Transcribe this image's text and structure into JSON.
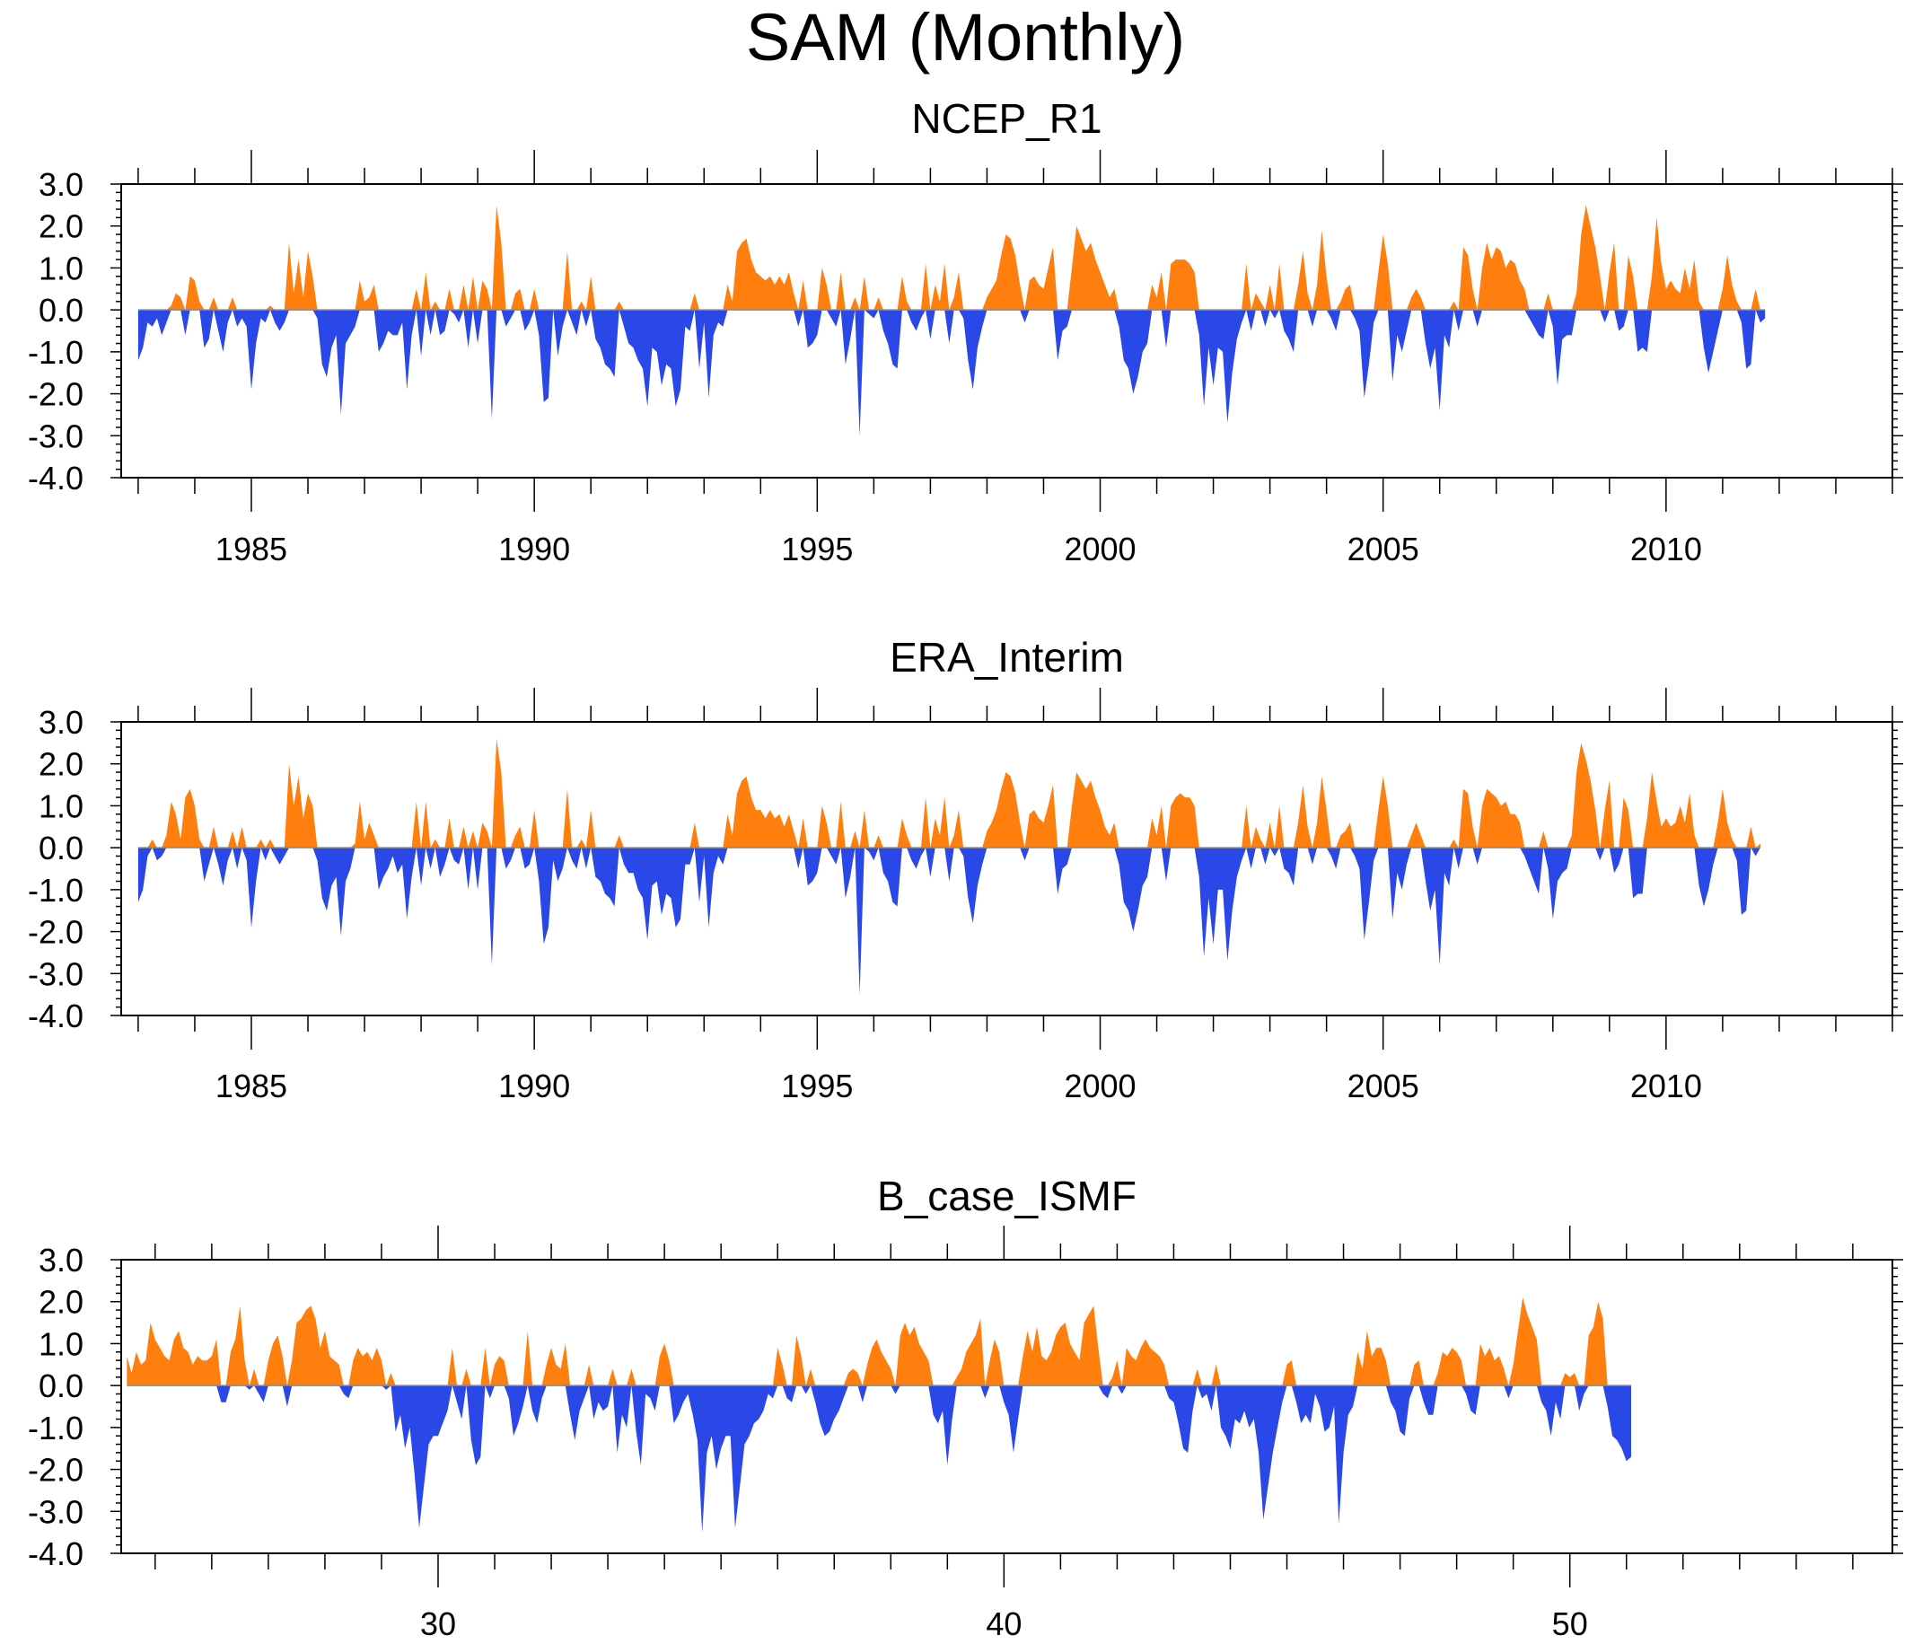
{
  "figure_title": "SAM (Monthly)",
  "colors": {
    "positive": "#ff7f0e",
    "negative": "#2a47e8",
    "axis": "#000000"
  },
  "chart_data": [
    {
      "type": "area",
      "title": "NCEP_R1",
      "xlabel": "",
      "ylabel": "",
      "xlim": [
        1982.7,
        2014.0
      ],
      "ylim": [
        -4.0,
        3.0
      ],
      "x_start": 1983.0,
      "x_step": 0.0833333,
      "x_tick_labels": [
        "1985",
        "1990",
        "1995",
        "2000",
        "2005",
        "2010"
      ],
      "x_tick_values": [
        1985,
        1990,
        1995,
        2000,
        2005,
        2010
      ],
      "y_tick_labels": [
        "3.0",
        "2.0",
        "1.0",
        "0.0",
        "-1.0",
        "-2.0",
        "-3.0",
        "-4.0"
      ],
      "y_tick_values": [
        3,
        2,
        1,
        0,
        -1,
        -2,
        -3,
        -4
      ],
      "values": [
        -1.2,
        -0.9,
        -0.3,
        -0.4,
        -0.2,
        -0.6,
        -0.3,
        0.1,
        0.4,
        0.3,
        -0.6,
        0.8,
        0.7,
        0.2,
        -0.9,
        -0.7,
        0.3,
        -0.5,
        -1.0,
        -0.3,
        0.3,
        -0.4,
        -0.2,
        -0.4,
        -1.9,
        -0.8,
        -0.2,
        -0.3,
        0.1,
        -0.3,
        -0.5,
        -0.3,
        1.6,
        0.4,
        1.2,
        0.3,
        1.4,
        0.8,
        -0.2,
        -1.3,
        -1.6,
        -0.9,
        -0.6,
        -2.5,
        -0.8,
        -0.6,
        -0.4,
        0.7,
        0.2,
        0.3,
        0.6,
        -1.0,
        -0.8,
        -0.5,
        -0.6,
        -0.6,
        -0.3,
        -1.9,
        -0.6,
        0.5,
        -1.1,
        0.9,
        -0.6,
        0.2,
        -0.6,
        -0.5,
        0.5,
        -0.1,
        -0.3,
        0.6,
        -0.9,
        0.8,
        -0.8,
        0.7,
        0.5,
        -2.6,
        2.5,
        1.6,
        -0.4,
        -0.2,
        0.4,
        0.5,
        -0.5,
        -0.3,
        0.5,
        -0.6,
        -2.2,
        -2.1,
        0.0,
        -1.1,
        -0.4,
        1.4,
        -0.3,
        -0.6,
        0.2,
        -0.4,
        0.8,
        -0.7,
        -0.9,
        -1.3,
        -1.4,
        -1.6,
        0.2,
        -0.4,
        -0.8,
        -0.9,
        -1.2,
        -1.4,
        -2.3,
        -0.9,
        -1.0,
        -1.8,
        -1.3,
        -1.4,
        -2.3,
        -1.9,
        -0.4,
        -0.5,
        0.4,
        -1.4,
        -0.3,
        -2.1,
        -0.6,
        -0.3,
        -0.4,
        0.6,
        0.2,
        1.4,
        1.6,
        1.7,
        1.2,
        0.9,
        0.8,
        0.7,
        0.8,
        0.6,
        0.8,
        0.6,
        0.9,
        0.4,
        -0.4,
        0.7,
        -0.9,
        -0.8,
        -0.6,
        1.0,
        0.6,
        -0.2,
        -0.4,
        0.9,
        -1.3,
        -0.7,
        0.3,
        -3.0,
        0.8,
        -0.1,
        -0.2,
        0.3,
        -0.5,
        -0.8,
        -1.3,
        -1.4,
        0.8,
        0.2,
        -0.3,
        -0.5,
        -0.2,
        1.1,
        -0.7,
        0.6,
        0.2,
        1.1,
        -0.8,
        0.3,
        0.9,
        -0.2,
        -1.2,
        -1.9,
        -0.9,
        -0.4,
        0.3,
        0.5,
        0.7,
        1.3,
        1.8,
        1.7,
        1.3,
        0.6,
        -0.3,
        0.7,
        0.8,
        0.6,
        0.5,
        1.0,
        1.5,
        -1.2,
        -0.5,
        -0.4,
        1.0,
        2.0,
        1.7,
        1.4,
        1.6,
        1.2,
        0.9,
        0.6,
        0.3,
        0.5,
        -0.4,
        -1.2,
        -1.4,
        -2.0,
        -1.6,
        -1.0,
        -0.8,
        0.6,
        0.3,
        0.9,
        -0.9,
        1.1,
        1.2,
        1.2,
        1.2,
        1.1,
        0.9,
        -0.6,
        -2.3,
        -0.9,
        -1.8,
        -0.9,
        -1.0,
        -2.7,
        -1.5,
        -0.7,
        -0.3,
        1.1,
        -0.5,
        0.4,
        0.2,
        -0.4,
        0.6,
        -0.2,
        1.1,
        -0.5,
        -0.7,
        -1.0,
        0.6,
        1.4,
        0.4,
        -0.4,
        0.6,
        1.9,
        0.8,
        -0.2,
        -0.5,
        0.2,
        0.5,
        0.6,
        -0.2,
        -0.5,
        -2.1,
        -1.3,
        -0.3,
        0.9,
        1.8,
        1.1,
        -1.7,
        -0.6,
        -1.0,
        -0.5,
        0.3,
        0.5,
        0.3,
        -0.8,
        -1.4,
        -0.9,
        -2.4,
        -0.6,
        -0.9,
        0.2,
        -0.5,
        1.5,
        1.3,
        0.5,
        -0.4,
        1.0,
        1.6,
        1.2,
        1.5,
        1.4,
        1.0,
        1.2,
        1.1,
        0.7,
        0.5,
        -0.2,
        -0.4,
        -0.6,
        -0.7,
        0.4,
        -0.4,
        -1.8,
        -0.7,
        -0.6,
        -0.6,
        0.4,
        1.8,
        2.5,
        2.0,
        1.5,
        0.8,
        -0.3,
        0.9,
        1.6,
        -0.5,
        -0.4,
        1.3,
        0.8,
        -1.0,
        -0.9,
        -1.0,
        0.8,
        2.2,
        1.1,
        0.5,
        0.7,
        0.5,
        0.4,
        1.0,
        0.5,
        1.2,
        0.2,
        -0.9,
        -1.5,
        -1.0,
        -0.5,
        0.5,
        1.3,
        0.6,
        0.2,
        -0.3,
        -1.4,
        -1.3,
        0.5,
        -0.3,
        -0.2
      ]
    },
    {
      "type": "area",
      "title": "ERA_Interim",
      "xlabel": "",
      "ylabel": "",
      "xlim": [
        1982.7,
        2014.0
      ],
      "ylim": [
        -4.0,
        3.0
      ],
      "x_start": 1983.0,
      "x_step": 0.0833333,
      "x_tick_labels": [
        "1985",
        "1990",
        "1995",
        "2000",
        "2005",
        "2010"
      ],
      "x_tick_values": [
        1985,
        1990,
        1995,
        2000,
        2005,
        2010
      ],
      "y_tick_labels": [
        "3.0",
        "2.0",
        "1.0",
        "0.0",
        "-1.0",
        "-2.0",
        "-3.0",
        "-4.0"
      ],
      "y_tick_values": [
        3,
        2,
        1,
        0,
        -1,
        -2,
        -3,
        -4
      ],
      "values": [
        -1.3,
        -1.0,
        -0.2,
        0.2,
        -0.3,
        -0.2,
        0.3,
        1.1,
        0.8,
        0.2,
        1.2,
        1.4,
        1.0,
        0.2,
        -0.8,
        -0.4,
        0.5,
        -0.4,
        -0.9,
        -0.3,
        0.4,
        -0.5,
        0.5,
        -0.3,
        -1.9,
        -0.8,
        0.2,
        -0.3,
        0.2,
        -0.2,
        -0.4,
        -0.2,
        2.0,
        1.0,
        1.7,
        0.7,
        1.3,
        1.0,
        -0.3,
        -1.2,
        -1.5,
        -0.9,
        -0.7,
        -2.1,
        -0.8,
        -0.5,
        0.1,
        1.1,
        0.2,
        0.6,
        0.3,
        -1.0,
        -0.7,
        -0.5,
        -0.2,
        -0.6,
        -0.4,
        -1.7,
        -0.7,
        1.1,
        -0.9,
        1.1,
        -0.5,
        0.2,
        -0.7,
        -0.4,
        0.7,
        -0.3,
        -0.4,
        0.5,
        -1.0,
        0.4,
        -1.0,
        0.6,
        0.4,
        -2.8,
        2.6,
        1.8,
        -0.5,
        -0.3,
        0.3,
        0.5,
        -0.5,
        -0.4,
        0.9,
        -0.8,
        -2.3,
        -1.9,
        -0.3,
        -0.8,
        -0.5,
        1.4,
        -0.3,
        -0.5,
        0.2,
        -0.5,
        0.9,
        -0.7,
        -0.8,
        -1.1,
        -1.2,
        -1.4,
        0.3,
        -0.4,
        -0.6,
        -0.6,
        -1.0,
        -1.2,
        -2.2,
        -0.9,
        -0.8,
        -1.6,
        -1.1,
        -1.2,
        -1.9,
        -1.7,
        -0.4,
        -0.4,
        0.6,
        -1.3,
        -0.2,
        -1.9,
        -0.6,
        -0.2,
        -0.4,
        0.8,
        0.3,
        1.3,
        1.6,
        1.7,
        1.2,
        0.9,
        0.9,
        0.7,
        0.9,
        0.7,
        0.8,
        0.5,
        0.8,
        0.4,
        -0.5,
        0.7,
        -0.9,
        -0.8,
        -0.6,
        1.0,
        0.6,
        -0.2,
        -0.4,
        1.1,
        -1.2,
        -0.7,
        0.4,
        -3.5,
        0.9,
        -0.1,
        -0.3,
        0.3,
        -0.6,
        -0.8,
        -1.3,
        -1.4,
        0.7,
        0.3,
        -0.3,
        -0.5,
        -0.2,
        1.2,
        -0.7,
        0.7,
        0.3,
        1.2,
        -0.8,
        0.3,
        0.9,
        -0.2,
        -1.2,
        -1.8,
        -0.9,
        -0.4,
        0.4,
        0.6,
        0.9,
        1.4,
        1.8,
        1.7,
        1.3,
        0.6,
        -0.3,
        0.8,
        0.9,
        0.7,
        0.6,
        1.0,
        1.5,
        -1.1,
        -0.5,
        -0.4,
        1.0,
        1.8,
        1.6,
        1.4,
        1.6,
        1.2,
        0.9,
        0.5,
        0.3,
        0.6,
        -0.4,
        -1.3,
        -1.5,
        -2.0,
        -1.5,
        -0.9,
        -0.7,
        0.7,
        0.3,
        1.0,
        -0.8,
        1.0,
        1.2,
        1.3,
        1.2,
        1.2,
        1.0,
        -0.7,
        -2.6,
        -1.2,
        -2.3,
        -1.0,
        -1.0,
        -2.7,
        -1.5,
        -0.7,
        -0.3,
        1.0,
        -0.5,
        0.5,
        0.2,
        -0.4,
        0.6,
        -0.2,
        1.0,
        -0.5,
        -0.6,
        -0.9,
        0.6,
        1.5,
        0.5,
        -0.4,
        0.6,
        1.7,
        0.9,
        -0.2,
        -0.5,
        0.3,
        0.4,
        0.6,
        -0.2,
        -0.5,
        -2.2,
        -1.3,
        -0.3,
        0.9,
        1.7,
        1.0,
        -1.7,
        -0.6,
        -1.0,
        -0.4,
        0.3,
        0.6,
        0.3,
        -0.8,
        -1.5,
        -1.0,
        -2.8,
        -0.6,
        -0.9,
        0.2,
        -0.5,
        1.4,
        1.3,
        0.5,
        -0.4,
        1.0,
        1.4,
        1.3,
        1.2,
        1.0,
        1.1,
        0.8,
        0.8,
        0.6,
        -0.2,
        -0.5,
        -0.8,
        -1.1,
        0.4,
        -0.5,
        -1.7,
        -0.8,
        -0.6,
        -0.5,
        0.3,
        1.8,
        2.5,
        2.1,
        1.6,
        0.9,
        -0.3,
        0.9,
        1.6,
        -0.6,
        -0.4,
        1.2,
        0.9,
        -1.2,
        -1.1,
        -1.1,
        0.7,
        1.8,
        1.1,
        0.5,
        0.7,
        0.5,
        0.6,
        1.0,
        0.6,
        1.3,
        0.3,
        -0.9,
        -1.4,
        -1.0,
        -0.4,
        0.6,
        1.4,
        0.6,
        0.2,
        -0.3,
        -1.6,
        -1.5,
        0.5,
        -0.2,
        0.1
      ]
    },
    {
      "type": "area",
      "title": "B_case_ISMF",
      "xlabel": "",
      "ylabel": "",
      "xlim": [
        24.4,
        55.7
      ],
      "ylim": [
        -4.0,
        3.0
      ],
      "x_start": 24.5,
      "x_step": 0.0833333,
      "x_tick_labels": [
        "30",
        "40",
        "50"
      ],
      "x_tick_values": [
        30,
        40,
        50
      ],
      "y_tick_labels": [
        "3.0",
        "2.0",
        "1.0",
        "0.0",
        "-1.0",
        "-2.0",
        "-3.0",
        "-4.0"
      ],
      "y_tick_values": [
        3,
        2,
        1,
        0,
        -1,
        -2,
        -3,
        -4
      ],
      "values": [
        0.7,
        0.3,
        0.8,
        0.5,
        0.6,
        1.5,
        1.1,
        0.9,
        0.7,
        0.6,
        1.1,
        1.3,
        0.9,
        0.8,
        0.5,
        0.7,
        0.6,
        0.6,
        0.7,
        1.1,
        -0.4,
        -0.4,
        0.8,
        1.1,
        1.9,
        0.6,
        -0.1,
        0.4,
        -0.2,
        -0.4,
        0.6,
        1.0,
        1.2,
        0.7,
        -0.5,
        0.6,
        1.5,
        1.6,
        1.8,
        1.9,
        1.6,
        0.9,
        1.3,
        0.7,
        0.6,
        0.5,
        -0.2,
        -0.3,
        0.6,
        0.9,
        0.7,
        0.8,
        0.6,
        0.9,
        0.6,
        -0.1,
        0.3,
        -1.1,
        -0.7,
        -1.5,
        -1.0,
        -2.1,
        -3.4,
        -2.4,
        -1.4,
        -1.2,
        -1.2,
        -0.9,
        -0.6,
        0.9,
        -0.4,
        -0.8,
        0.4,
        -1.3,
        -1.9,
        -1.7,
        0.9,
        -0.3,
        0.5,
        0.7,
        0.6,
        -0.3,
        -1.2,
        -0.9,
        -0.5,
        1.3,
        -0.6,
        -0.9,
        -0.3,
        0.5,
        0.9,
        0.5,
        0.4,
        1.0,
        -0.7,
        -1.3,
        -0.6,
        -0.3,
        0.5,
        -0.8,
        -0.4,
        -0.6,
        -0.5,
        0.4,
        -1.6,
        -0.7,
        -1.0,
        0.4,
        -1.1,
        -1.9,
        -0.2,
        -0.3,
        -0.6,
        0.7,
        1.0,
        0.6,
        -0.9,
        -0.7,
        -0.4,
        -0.2,
        -0.7,
        -1.3,
        -3.5,
        -1.6,
        -1.2,
        -2.0,
        -1.5,
        -1.2,
        -1.2,
        -3.4,
        -2.4,
        -1.4,
        -1.2,
        -0.9,
        -0.8,
        -0.6,
        -0.2,
        -0.3,
        0.9,
        0.5,
        -0.3,
        -0.4,
        1.2,
        0.7,
        -0.2,
        0.4,
        -0.4,
        -0.9,
        -1.2,
        -1.1,
        -0.8,
        -0.6,
        -0.3,
        0.3,
        0.4,
        0.3,
        -0.4,
        0.5,
        0.9,
        1.1,
        0.8,
        0.6,
        0.4,
        -0.2,
        1.2,
        1.5,
        1.2,
        1.4,
        1.0,
        0.8,
        0.6,
        -0.7,
        -0.9,
        -0.6,
        -1.9,
        -0.8,
        0.2,
        0.4,
        0.8,
        1.0,
        1.2,
        1.6,
        -0.3,
        0.6,
        1.1,
        0.8,
        -0.4,
        -0.7,
        -1.6,
        -0.8,
        0.7,
        1.3,
        0.8,
        1.4,
        0.7,
        0.6,
        0.8,
        1.2,
        1.4,
        1.5,
        1.0,
        0.8,
        0.6,
        1.5,
        1.7,
        1.9,
        0.9,
        -0.2,
        -0.3,
        0.2,
        0.6,
        -0.2,
        0.9,
        0.7,
        0.6,
        0.9,
        1.1,
        0.9,
        0.8,
        0.7,
        0.5,
        -0.3,
        -0.4,
        -0.9,
        -1.5,
        -1.6,
        -0.6,
        0.4,
        -0.3,
        -0.2,
        -0.6,
        0.5,
        -1.0,
        -1.2,
        -1.5,
        -0.8,
        -0.9,
        -0.6,
        -1.0,
        -0.8,
        -1.6,
        -3.2,
        -2.4,
        -1.6,
        -1.0,
        -0.4,
        0.5,
        0.6,
        -0.4,
        -0.9,
        -0.7,
        -0.9,
        -0.2,
        -0.5,
        -1.1,
        -1.0,
        -0.5,
        -3.3,
        -1.6,
        -0.7,
        -0.5,
        0.8,
        0.4,
        1.3,
        0.7,
        0.9,
        0.9,
        0.6,
        -0.4,
        -0.6,
        -1.1,
        -1.2,
        -0.3,
        0.5,
        0.6,
        -0.4,
        -0.7,
        -0.7,
        0.3,
        0.8,
        0.7,
        0.9,
        0.8,
        0.6,
        -0.2,
        -0.6,
        -0.7,
        1.0,
        0.7,
        0.9,
        0.6,
        0.7,
        0.4,
        -0.3,
        0.5,
        1.3,
        2.1,
        1.7,
        1.4,
        1.1,
        -0.4,
        -0.6,
        -1.2,
        -0.4,
        -0.8,
        0.3,
        0.2,
        0.3,
        -0.6,
        -0.2,
        1.2,
        1.4,
        2.0,
        1.6,
        -0.5,
        -1.2,
        -1.3,
        -1.5,
        -1.8,
        -1.7
      ]
    }
  ]
}
